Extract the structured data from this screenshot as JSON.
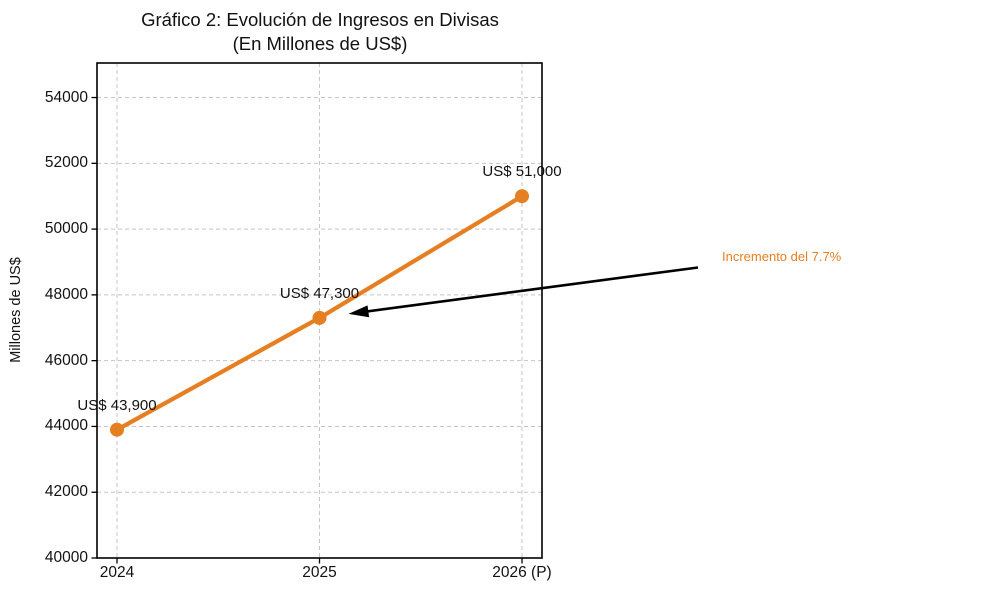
{
  "chart_data": {
    "type": "line",
    "title": "Gráfico 2: Evolución de Ingresos en Divisas",
    "subtitle": "(En Millones de US$)",
    "xlabel": "",
    "ylabel": "Millones de US$",
    "categories": [
      "2024",
      "2025",
      "2026 (P)"
    ],
    "values": [
      43900,
      47300,
      51000
    ],
    "point_labels": [
      "US$ 43,900",
      "US$ 47,300",
      "US$ 51,000"
    ],
    "yticks": [
      40000,
      42000,
      44000,
      46000,
      48000,
      50000,
      52000,
      54000
    ],
    "ylim": [
      40000,
      55050
    ],
    "grid": true,
    "legend_position": "none",
    "line_color": "#E67E22",
    "marker": "circle",
    "annotation": {
      "text": "Incremento del 7.7%",
      "color": "#E67E22",
      "arrow_color": "#000000",
      "points_to_category": "2025"
    }
  }
}
